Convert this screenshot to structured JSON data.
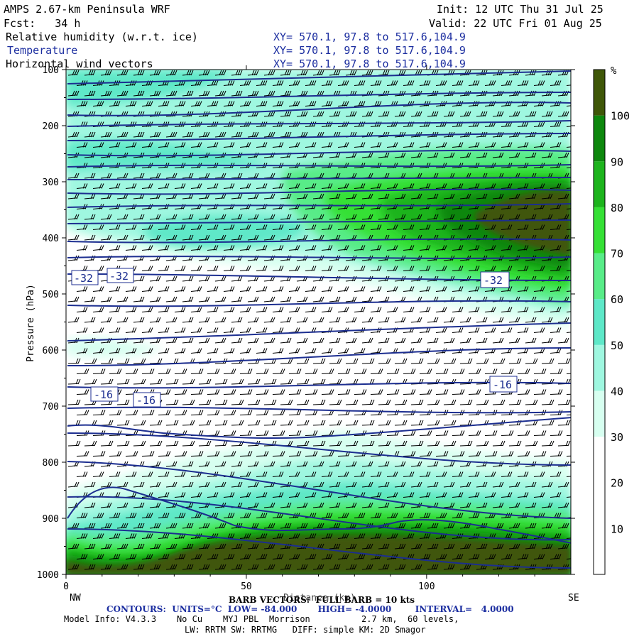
{
  "header": {
    "model_title": "AMPS 2.67-km Peninsula WRF",
    "init": "Init: 12 UTC Thu 31 Jul 25",
    "fcst": "Fcst:   34 h",
    "valid": "Valid: 22 UTC Fri 01 Aug 25",
    "field1": "Relative humidity (w.r.t. ice)",
    "field2": "Temperature",
    "field3": "Horizontal wind vectors",
    "xy1": "XY= 570.1, 97.8 to 517.6,104.9",
    "xy2": "XY= 570.1, 97.8 to 517.6,104.9",
    "xy3": "XY= 570.1, 97.8 to 517.6,104.9"
  },
  "colorbar": {
    "unit": "%",
    "ticks": [
      "10",
      "20",
      "30",
      "40",
      "50",
      "60",
      "70",
      "80",
      "90",
      "100"
    ],
    "colors": [
      "#ffffff",
      "#ffffff",
      "#ffffff",
      "#d7fff0",
      "#9ff7e0",
      "#5ee8c8",
      "#58ec88",
      "#35e035",
      "#1db41d",
      "#0d870d",
      "#3f5708"
    ]
  },
  "chart_data": {
    "type": "cross-section",
    "xlabel": "Distance (km)",
    "ylabel": "Pressure (hPa)",
    "x_ticks": [
      "0",
      "50",
      "100"
    ],
    "y_ticks": [
      "100",
      "200",
      "300",
      "400",
      "500",
      "600",
      "700",
      "800",
      "900",
      "1000"
    ],
    "xlim": [
      0,
      140
    ],
    "ylim": [
      1000,
      100
    ],
    "left_end_label": "NW",
    "right_end_label": "SE",
    "contour_labels": [
      "-32",
      "-32",
      "-32",
      "-16",
      "-16",
      "-16"
    ],
    "contours": {
      "units_text": "CONTOURS:  UNITS=°C  LOW= -84.000       HIGH= -4.0000        INTERVAL=   4.0000",
      "low": -84.0,
      "high": -4.0,
      "interval": 4.0
    }
  },
  "footer": {
    "barb": "BARB VECTORS:  FULL BARB = 10 kts",
    "contours": "CONTOURS:  UNITS=°C  LOW= -84.000       HIGH= -4.0000        INTERVAL=   4.0000",
    "model_info": "Model Info: V4.3.3    No Cu    MYJ PBL  Morrison          2.7 km,  60 levels,",
    "physics": "LW: RRTM SW: RRTMG   DIFF: simple KM: 2D Smagor"
  }
}
